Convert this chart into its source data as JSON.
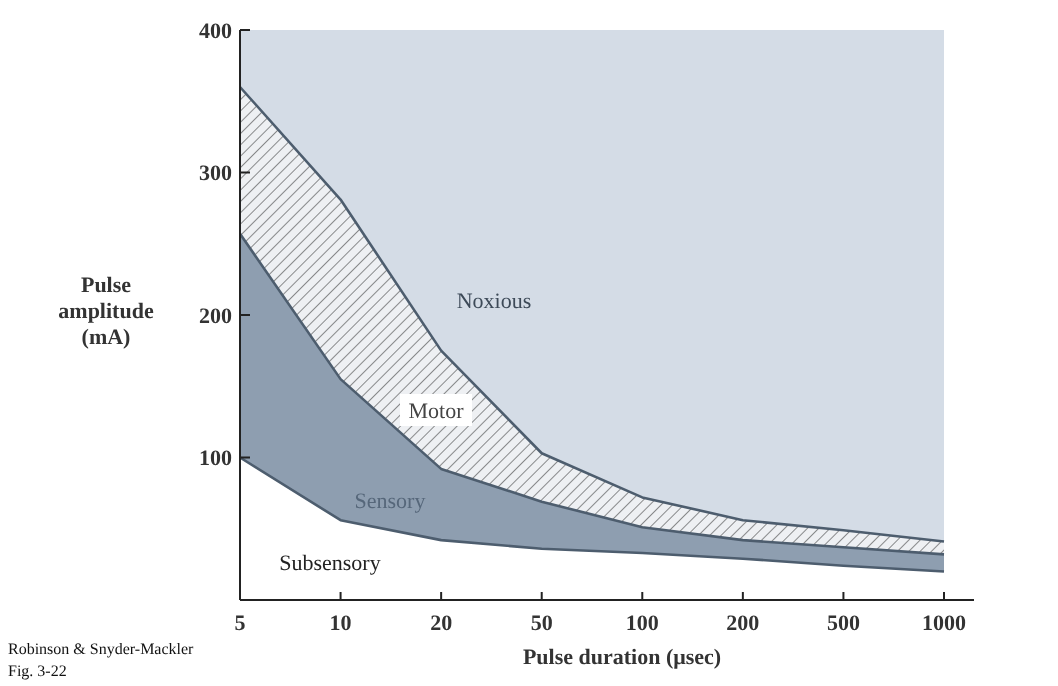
{
  "chart_data": {
    "type": "area",
    "xlabel": "Pulse duration (μsec)",
    "ylabel": "Pulse amplitude (mA)",
    "categories": [
      "5",
      "10",
      "20",
      "50",
      "100",
      "200",
      "500",
      "1000"
    ],
    "ylim": [
      0,
      400
    ],
    "yticks": [
      {
        "value": 0,
        "label": null
      },
      100,
      200,
      300,
      400
    ],
    "series": [
      {
        "color": "#eef0f3",
        "values": [
          360,
          281,
          175,
          103,
          72,
          56,
          49,
          41
        ]
      },
      {
        "color": "#8e9eb0",
        "values": [
          257,
          155,
          92,
          69,
          51,
          42,
          37,
          32
        ]
      },
      {
        "color": "#ffffff",
        "values": [
          100,
          56,
          42,
          36,
          33,
          29,
          24,
          20
        ]
      }
    ],
    "annotations": [
      "Noxious",
      "Motor",
      "Sensory",
      "Subsensory",
      "Robinson & Snyder-Mackler Fig. 3-22"
    ]
  }
}
